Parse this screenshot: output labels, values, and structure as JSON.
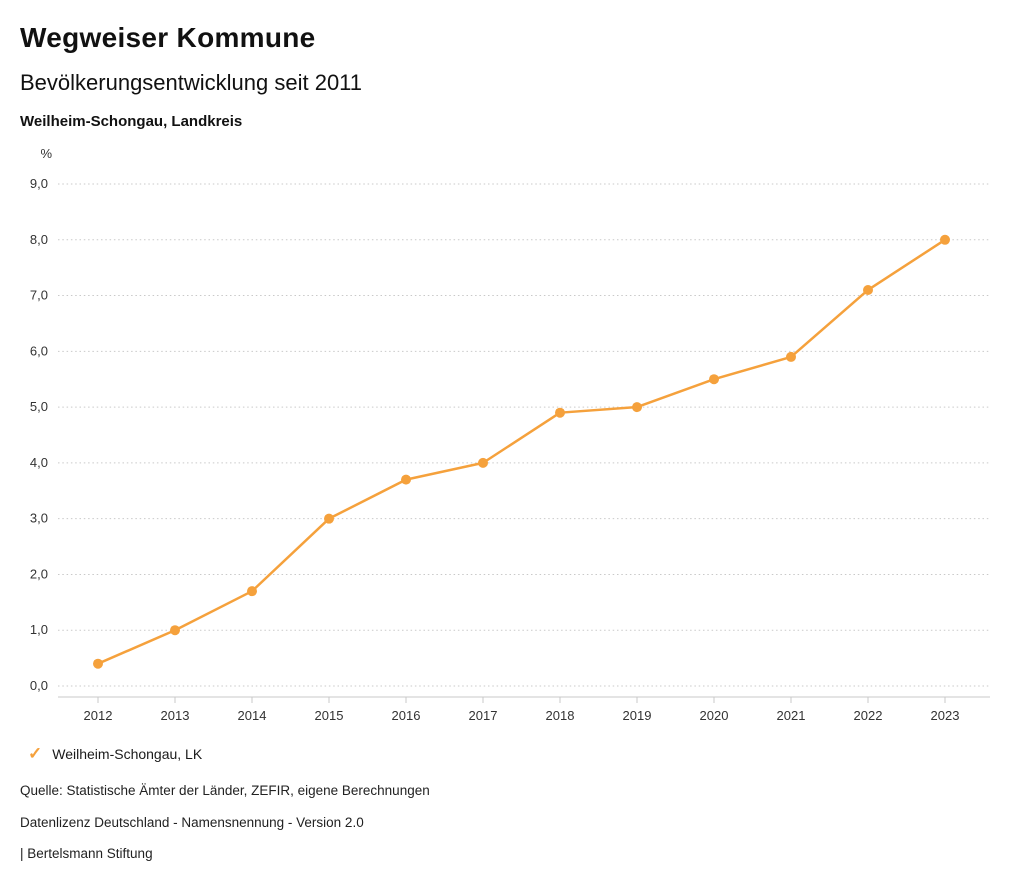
{
  "header": {
    "title": "Wegweiser Kommune",
    "subtitle": "Bevölkerungsentwicklung seit 2011",
    "region": "Weilheim-Schongau, Landkreis"
  },
  "chart_data": {
    "type": "line",
    "title": "Bevölkerungsentwicklung seit 2011",
    "unit_label": "%",
    "categories": [
      "2012",
      "2013",
      "2014",
      "2015",
      "2016",
      "2017",
      "2018",
      "2019",
      "2020",
      "2021",
      "2022",
      "2023"
    ],
    "series": [
      {
        "name": "Weilheim-Schongau, LK",
        "color": "#F5A13C",
        "values": [
          0.4,
          1.0,
          1.7,
          3.0,
          3.7,
          4.0,
          4.9,
          5.0,
          5.5,
          5.9,
          7.1,
          8.0
        ]
      }
    ],
    "ylim": [
      0,
      9
    ],
    "y_tick_values": [
      0,
      1,
      2,
      3,
      4,
      5,
      6,
      7,
      8,
      9
    ],
    "y_tick_labels": [
      "0,0",
      "1,0",
      "2,0",
      "3,0",
      "4,0",
      "5,0",
      "6,0",
      "7,0",
      "8,0",
      "9,0"
    ],
    "grid": "dotted-horizontal",
    "legend_position": "bottom"
  },
  "legend": {
    "items": [
      {
        "label": "Weilheim-Schongau, LK",
        "color": "#F5A13C",
        "marker": "check",
        "marker_glyph": "✓"
      }
    ]
  },
  "footer": {
    "source": "Quelle: Statistische Ämter der Länder, ZEFIR, eigene Berechnungen",
    "license": "Datenlizenz Deutschland - Namensnennung - Version 2.0",
    "brand": "| Bertelsmann Stiftung"
  },
  "colors": {
    "accent": "#F5A13C"
  }
}
